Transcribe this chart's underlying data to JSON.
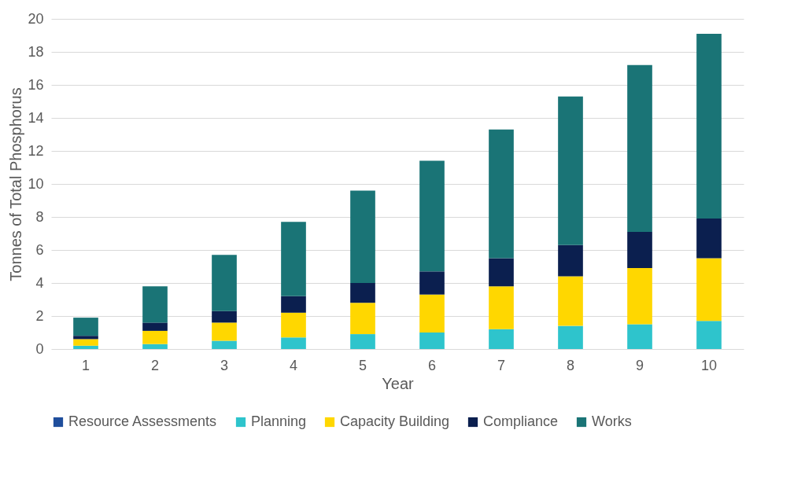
{
  "chart_data": {
    "type": "bar",
    "stacked": true,
    "xlabel": "Year",
    "ylabel": "Tonnes of Total Phosphorus",
    "categories": [
      "1",
      "2",
      "3",
      "4",
      "5",
      "6",
      "7",
      "8",
      "9",
      "10"
    ],
    "series": [
      {
        "name": "Resource Assessments",
        "color": "#1f4e9c",
        "values": [
          0,
          0,
          0,
          0,
          0,
          0,
          0,
          0,
          0,
          0
        ]
      },
      {
        "name": "Planning",
        "color": "#2ec4cc",
        "values": [
          0.2,
          0.3,
          0.5,
          0.7,
          0.9,
          1.0,
          1.2,
          1.4,
          1.5,
          1.7
        ]
      },
      {
        "name": "Capacity Building",
        "color": "#ffd700",
        "values": [
          0.4,
          0.8,
          1.1,
          1.5,
          1.9,
          2.3,
          2.6,
          3.0,
          3.4,
          3.8
        ]
      },
      {
        "name": "Compliance",
        "color": "#0b1f4f",
        "values": [
          0.2,
          0.5,
          0.7,
          1.0,
          1.2,
          1.4,
          1.7,
          1.9,
          2.2,
          2.4
        ]
      },
      {
        "name": "Works",
        "color": "#1a7476",
        "values": [
          1.1,
          2.2,
          3.4,
          4.5,
          5.6,
          6.7,
          7.8,
          9.0,
          10.1,
          11.2
        ]
      }
    ],
    "ylim": [
      0,
      20
    ],
    "yticks": [
      0,
      2,
      4,
      6,
      8,
      10,
      12,
      14,
      16,
      18,
      20
    ],
    "grid": "y",
    "legend": "bottom"
  }
}
